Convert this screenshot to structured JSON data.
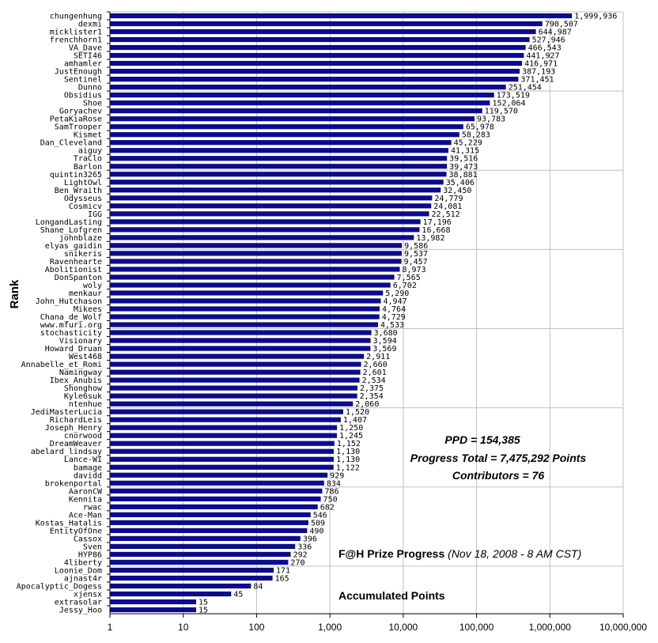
{
  "chart_data": {
    "type": "bar",
    "orientation": "horizontal",
    "xscale": "log",
    "xlim": [
      1,
      10000000
    ],
    "xticks": [
      "1",
      "10",
      "100",
      "1,000",
      "10,000",
      "100,000",
      "1,000,000",
      "10,000,000"
    ],
    "ylabel": "Rank",
    "grid": true,
    "bar_color": "#0B0B8F",
    "categories": [
      "chungenhung",
      "dexmi",
      "micklister1",
      "frenchhorn1",
      "VA_Dave",
      "SETI46",
      "amhamler",
      "JustEnough",
      "Sentinel",
      "Dunno",
      "Obsidius",
      "Shoe",
      "Goryachev",
      "PetaKiaRose",
      "SamTrooper",
      "Kismet",
      "Dan_Cleveland",
      "aiguy",
      "TraClo",
      "Barlon",
      "quintin3265",
      "LightOwl",
      "Ben_Wraith",
      "Odysseus",
      "Cosmicv",
      "IGG",
      "LongandLasting",
      "Shane_Lofgren",
      "johnblaze",
      "elyas_gaidin",
      "snikeris",
      "Ravenhearte",
      "Abolitionist",
      "DonSpanton",
      "woly",
      "menkaur",
      "John_Hutchason",
      "Mikees",
      "Chana_de_Wolf",
      "www.mfuri.org",
      "stochasticity",
      "Visionary",
      "Howard_Druan",
      "West468",
      "Annabelle_et_Romi",
      "Namingway",
      "Ibex_Anubis",
      "Shonghow",
      "Kyle6suk",
      "ntenhue",
      "JediMasterLucia",
      "RichardLeis",
      "Joseph_Henry",
      "cnorwood",
      "DreamWeaver",
      "abelard_lindsay",
      "Lance-WI",
      "bamage",
      "davidd",
      "brokenportal",
      "AaronCW",
      "Kennita",
      "rwac",
      "Ace-Man",
      "Kostas_Hatalis",
      "EntityOfOne",
      "Cassox",
      "Sven",
      "HYP86",
      "4liberty",
      "Loonie_Dom",
      "ajnast4r",
      "Apocalyptic_Dogess",
      "xjensx",
      "extrasolar",
      "Jessy_Hoo"
    ],
    "values": [
      1999936,
      790507,
      644987,
      527946,
      466543,
      441927,
      416971,
      387193,
      371451,
      251454,
      173519,
      152064,
      119570,
      93783,
      65978,
      58283,
      45229,
      41315,
      39516,
      39473,
      38881,
      35406,
      32450,
      24779,
      24081,
      22512,
      17196,
      16668,
      13982,
      9586,
      9537,
      9457,
      8973,
      7565,
      6702,
      5290,
      4947,
      4764,
      4729,
      4533,
      3680,
      3594,
      3569,
      2911,
      2660,
      2601,
      2534,
      2375,
      2354,
      2060,
      1520,
      1407,
      1250,
      1245,
      1152,
      1130,
      1130,
      1122,
      929,
      834,
      786,
      750,
      682,
      546,
      509,
      490,
      396,
      336,
      292,
      270,
      171,
      165,
      84,
      45,
      15,
      15
    ],
    "value_labels": [
      "1,999,936",
      "790,507",
      "644,987",
      "527,946",
      "466,543",
      "441,927",
      "416,971",
      "387,193",
      "371,451",
      "251,454",
      "173,519",
      "152,064",
      "119,570",
      "93,783",
      "65,978",
      "58,283",
      "45,229",
      "41,315",
      "39,516",
      "39,473",
      "38,881",
      "35,406",
      "32,450",
      "24,779",
      "24,081",
      "22,512",
      "17,196",
      "16,668",
      "13,982",
      "9,586",
      "9,537",
      "9,457",
      "8,973",
      "7,565",
      "6,702",
      "5,290",
      "4,947",
      "4,764",
      "4,729",
      "4,533",
      "3,680",
      "3,594",
      "3,569",
      "2,911",
      "2,660",
      "2,601",
      "2,534",
      "2,375",
      "2,354",
      "2,060",
      "1,520",
      "1,407",
      "1,250",
      "1,245",
      "1,152",
      "1,130",
      "1,130",
      "1,122",
      "929",
      "834",
      "786",
      "750",
      "682",
      "546",
      "509",
      "490",
      "396",
      "336",
      "292",
      "270",
      "171",
      "165",
      "84",
      "45",
      "15",
      "15"
    ]
  },
  "annotations": {
    "ppd": "PPD = 154,385",
    "progress_total": "Progress Total = 7,475,292 Points",
    "contributors": "Contributors = 76",
    "title_main": "F@H Prize Progress",
    "title_date": "(Nov 18, 2008 - 8 AM CST)",
    "subtitle": "Accumulated Points"
  }
}
